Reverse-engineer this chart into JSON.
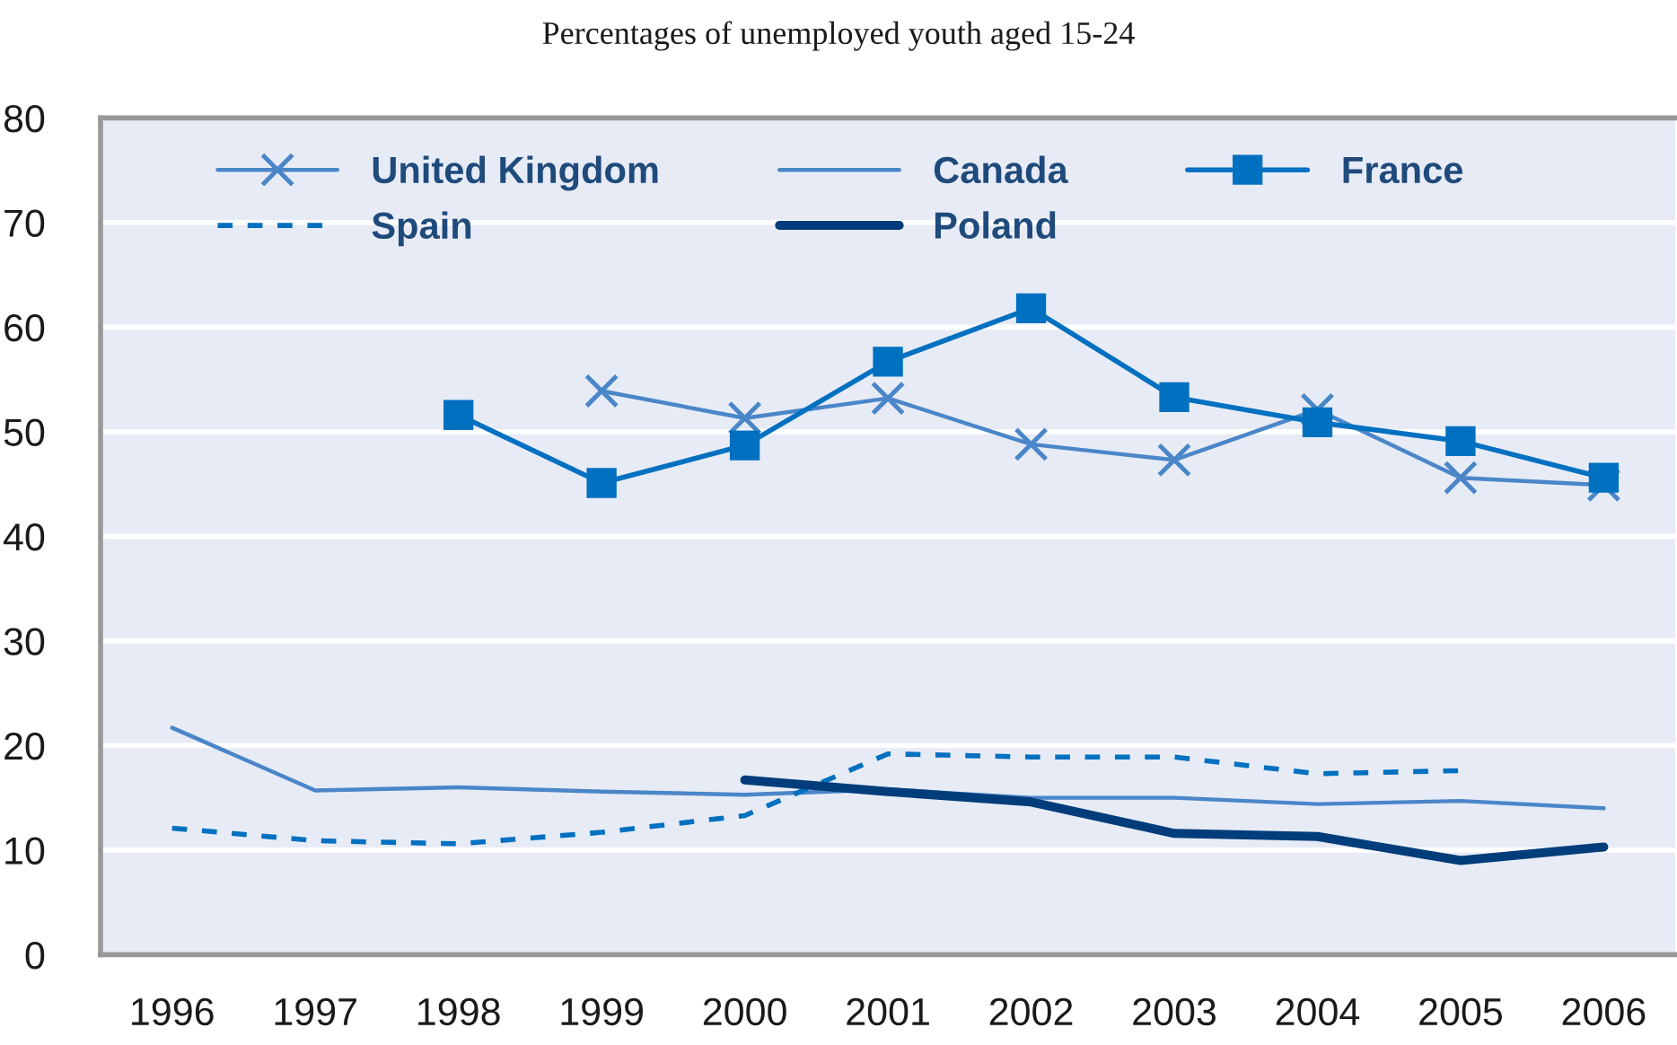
{
  "chart_data": {
    "type": "line",
    "title": "Percentages of unemployed youth aged 15-24",
    "categories": [
      "1996",
      "1997",
      "1998",
      "1999",
      "2000",
      "2001",
      "2002",
      "2003",
      "2004",
      "2005",
      "2006"
    ],
    "ylim": [
      0,
      80
    ],
    "yticks": [
      0,
      10,
      20,
      30,
      40,
      50,
      60,
      70,
      80
    ],
    "grid": "y",
    "legend": "top",
    "series": [
      {
        "name": "United Kingdom",
        "color": "#4a86c8",
        "marker": "cross",
        "line_style": "solid",
        "values": [
          null,
          null,
          null,
          53.9,
          51.3,
          53.2,
          48.8,
          47.3,
          52.1,
          45.6,
          44.9
        ]
      },
      {
        "name": "Canada",
        "color": "#4a86c8",
        "marker": "none",
        "line_style": "solid",
        "values": [
          21.7,
          15.7,
          16.0,
          15.6,
          15.3,
          15.8,
          15.0,
          15.0,
          14.4,
          14.7,
          14.0
        ]
      },
      {
        "name": "France",
        "color": "#0070c0",
        "marker": "square",
        "line_style": "solid",
        "values": [
          null,
          null,
          51.6,
          45.1,
          48.7,
          56.7,
          61.8,
          53.3,
          50.9,
          49.1,
          45.6
        ]
      },
      {
        "name": "Spain",
        "color": "#0070c0",
        "marker": "none",
        "line_style": "dashed",
        "values": [
          12.1,
          10.9,
          10.6,
          11.7,
          13.3,
          19.2,
          18.9,
          18.9,
          17.3,
          17.6,
          null
        ]
      },
      {
        "name": "Poland",
        "color": "#003d7a",
        "marker": "none",
        "line_style": "solid",
        "values": [
          null,
          null,
          null,
          null,
          16.7,
          15.6,
          14.6,
          11.6,
          11.3,
          9.0,
          10.3
        ]
      }
    ]
  }
}
